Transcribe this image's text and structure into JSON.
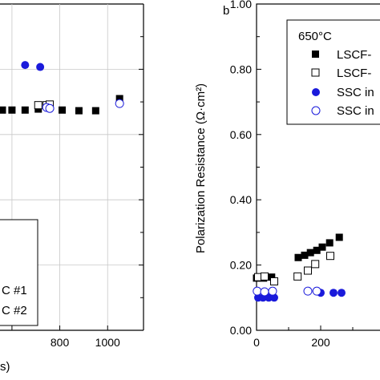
{
  "chart_data": [
    {
      "type": "scatter",
      "panel": "a",
      "xlabel": "s)",
      "ylabel": "",
      "xlim": [
        550,
        1150
      ],
      "ylim": [
        0.0,
        1.0
      ],
      "x_ticks": [
        600,
        800,
        1000
      ],
      "x_tick_labels": [
        "",
        "800",
        "1000"
      ],
      "grid": true,
      "legend_lines": [
        "C #1",
        "C #2"
      ],
      "series": [
        {
          "marker": "filled-square",
          "color": "#000000",
          "points": [
            [
              560,
              0.675
            ],
            [
              600,
              0.675
            ],
            [
              655,
              0.675
            ],
            [
              710,
              0.678
            ],
            [
              810,
              0.675
            ],
            [
              880,
              0.673
            ],
            [
              950,
              0.673
            ],
            [
              1050,
              0.71
            ]
          ]
        },
        {
          "marker": "open-square",
          "color": "#000000",
          "points": [
            [
              710,
              0.69
            ],
            [
              745,
              0.69
            ],
            [
              758,
              0.692
            ]
          ]
        },
        {
          "marker": "filled-circle",
          "color": "#1a1adb",
          "points": [
            [
              655,
              0.813
            ],
            [
              718,
              0.807
            ]
          ]
        },
        {
          "marker": "open-circle",
          "color": "#1a1adb",
          "points": [
            [
              745,
              0.683
            ],
            [
              758,
              0.68
            ],
            [
              1050,
              0.695
            ]
          ]
        }
      ]
    },
    {
      "type": "scatter",
      "panel": "b",
      "panel_label": "b",
      "xlabel": "",
      "ylabel": "Polarization Resistance (Ω·cm²)",
      "xlim": [
        0,
        450
      ],
      "ylim": [
        0.0,
        1.0
      ],
      "x_ticks": [
        0,
        200,
        400
      ],
      "x_tick_labels": [
        "0",
        "200",
        ""
      ],
      "y_ticks": [
        0.0,
        0.2,
        0.4,
        0.6,
        0.8,
        1.0
      ],
      "y_tick_labels": [
        "0.00",
        "0.20",
        "0.40",
        "0.60",
        "0.80",
        "1.00"
      ],
      "legend_title": "650°C",
      "legend_labels": [
        "LSCF-",
        "LSCF-",
        "SSC in",
        "SSC in"
      ],
      "series": [
        {
          "name": "LSCF-",
          "marker": "filled-square",
          "color": "#000000",
          "points": [
            [
              0,
              0.16
            ],
            [
              22,
              0.16
            ],
            [
              47,
              0.163
            ],
            [
              130,
              0.223
            ],
            [
              150,
              0.23
            ],
            [
              168,
              0.238
            ],
            [
              188,
              0.245
            ],
            [
              205,
              0.255
            ],
            [
              228,
              0.268
            ],
            [
              258,
              0.285
            ]
          ]
        },
        {
          "name": "LSCF-",
          "marker": "open-square",
          "color": "#000000",
          "points": [
            [
              5,
              0.163
            ],
            [
              25,
              0.165
            ],
            [
              55,
              0.15
            ],
            [
              128,
              0.165
            ],
            [
              160,
              0.183
            ],
            [
              183,
              0.203
            ],
            [
              230,
              0.228
            ]
          ]
        },
        {
          "name": "SSC in",
          "marker": "filled-circle",
          "color": "#1a1adb",
          "points": [
            [
              5,
              0.1
            ],
            [
              20,
              0.1
            ],
            [
              38,
              0.1
            ],
            [
              55,
              0.1
            ],
            [
              200,
              0.115
            ],
            [
              240,
              0.115
            ],
            [
              265,
              0.115
            ]
          ]
        },
        {
          "name": "SSC in",
          "marker": "open-circle",
          "color": "#1a1adb",
          "points": [
            [
              2,
              0.12
            ],
            [
              25,
              0.118
            ],
            [
              50,
              0.12
            ],
            [
              160,
              0.12
            ],
            [
              188,
              0.12
            ]
          ]
        }
      ]
    }
  ]
}
